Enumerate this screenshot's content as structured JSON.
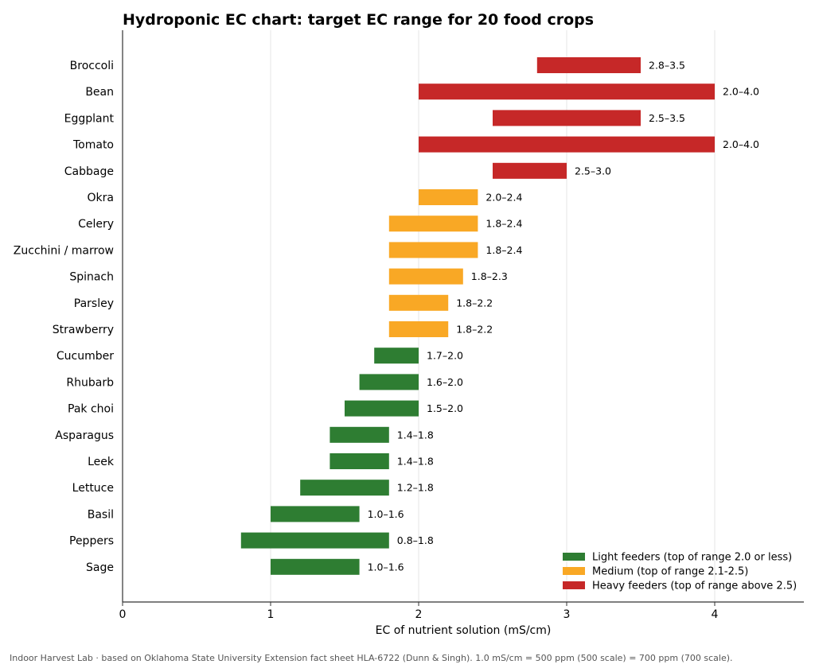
{
  "chart_data": {
    "type": "bar",
    "orientation": "horizontal",
    "title": "Hydroponic EC chart: target EC range for 20 food crops",
    "xlabel": "EC of nutrient solution (mS/cm)",
    "ylabel": "",
    "xlim": [
      0,
      4.6
    ],
    "xticks": [
      "0",
      "1",
      "2",
      "3",
      "4"
    ],
    "grid": "vertical",
    "legend_position": "bottom-right",
    "categories": [
      "Broccoli",
      "Bean",
      "Eggplant",
      "Tomato",
      "Cabbage",
      "Okra",
      "Celery",
      "Zucchini / marrow",
      "Spinach",
      "Parsley",
      "Strawberry",
      "Cucumber",
      "Rhubarb",
      "Pak choi",
      "Asparagus",
      "Leek",
      "Lettuce",
      "Basil",
      "Peppers",
      "Sage"
    ],
    "ranges": [
      [
        2.8,
        3.5
      ],
      [
        2.0,
        4.0
      ],
      [
        2.5,
        3.5
      ],
      [
        2.0,
        4.0
      ],
      [
        2.5,
        3.0
      ],
      [
        2.0,
        2.4
      ],
      [
        1.8,
        2.4
      ],
      [
        1.8,
        2.4
      ],
      [
        1.8,
        2.3
      ],
      [
        1.8,
        2.2
      ],
      [
        1.8,
        2.2
      ],
      [
        1.7,
        2.0
      ],
      [
        1.6,
        2.0
      ],
      [
        1.5,
        2.0
      ],
      [
        1.4,
        1.8
      ],
      [
        1.4,
        1.8
      ],
      [
        1.2,
        1.8
      ],
      [
        1.0,
        1.6
      ],
      [
        0.8,
        1.8
      ],
      [
        1.0,
        1.6
      ]
    ],
    "labels": [
      "2.8–3.5",
      "2.0–4.0",
      "2.5–3.5",
      "2.0–4.0",
      "2.5–3.0",
      "2.0–2.4",
      "1.8–2.4",
      "1.8–2.4",
      "1.8–2.3",
      "1.8–2.2",
      "1.8–2.2",
      "1.7–2.0",
      "1.6–2.0",
      "1.5–2.0",
      "1.4–1.8",
      "1.4–1.8",
      "1.2–1.8",
      "1.0–1.6",
      "0.8–1.8",
      "1.0–1.6"
    ],
    "groups": [
      "heavy",
      "heavy",
      "heavy",
      "heavy",
      "heavy",
      "medium",
      "medium",
      "medium",
      "medium",
      "medium",
      "medium",
      "light",
      "light",
      "light",
      "light",
      "light",
      "light",
      "light",
      "light",
      "light"
    ],
    "series": [
      {
        "key": "light",
        "name": "Light feeders (top of range 2.0 or less)",
        "color": "#2e7d32"
      },
      {
        "key": "medium",
        "name": "Medium (top of range 2.1-2.5)",
        "color": "#f9a825"
      },
      {
        "key": "heavy",
        "name": "Heavy feeders (top of range above 2.5)",
        "color": "#c62828"
      }
    ]
  },
  "footnote": "Indoor Harvest Lab · based on Oklahoma State University Extension fact sheet HLA-6722 (Dunn & Singh). 1.0 mS/cm = 500 ppm (500 scale) = 700 ppm (700 scale)."
}
